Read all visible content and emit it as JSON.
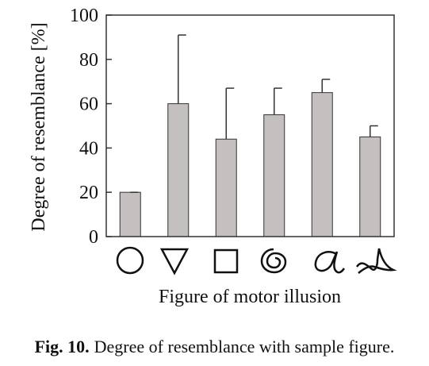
{
  "chart_data": {
    "type": "bar",
    "categories": [
      "circle",
      "inverted-triangle",
      "square",
      "spiral",
      "letter-a",
      "scribble"
    ],
    "values": [
      20,
      60,
      44,
      55,
      65,
      45
    ],
    "error_upper": [
      20,
      91,
      67,
      67,
      71,
      50
    ],
    "title": "",
    "xlabel": "Figure of motor illusion",
    "ylabel": "Degree of resemblance [%]",
    "ylim": [
      0,
      100
    ],
    "yticks": [
      "0",
      "20",
      "40",
      "60",
      "80",
      "100"
    ],
    "grid": false,
    "bar_color": "#c4c0bf",
    "outline_color": "#333333"
  },
  "caption": {
    "label": "Fig. 10.",
    "text": "Degree of resemblance with sample figure."
  }
}
